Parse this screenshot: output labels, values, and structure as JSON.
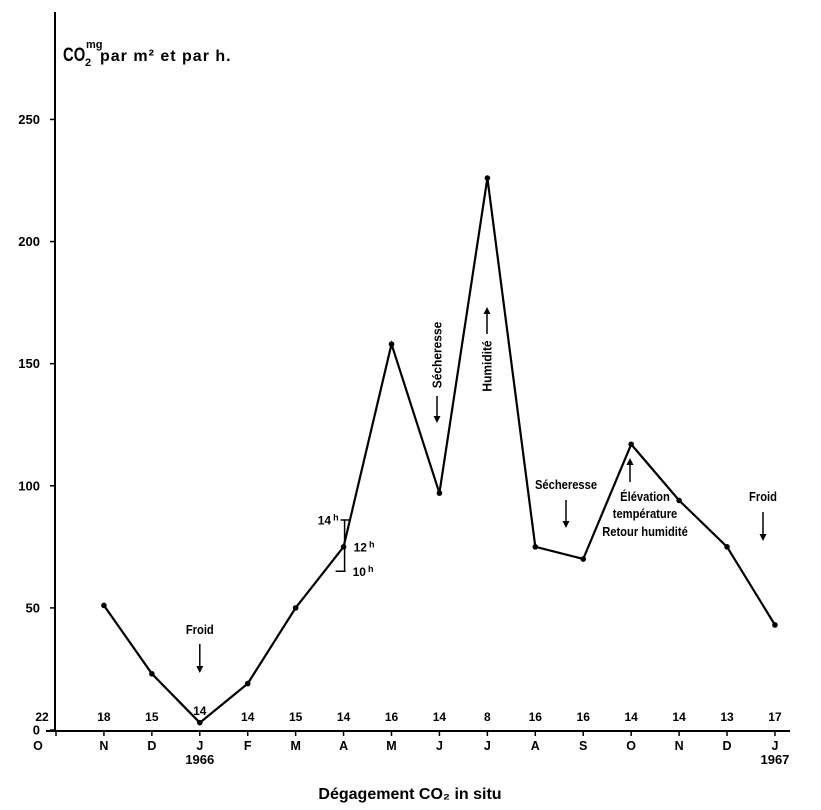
{
  "chart_data": {
    "type": "line",
    "title": "Dégagement CO₂ in situ",
    "ylabel": {
      "base": "CO",
      "subscript": "2",
      "superscript": "mg",
      "text": "par m² et par h."
    },
    "categories": [
      "O",
      "N",
      "D",
      "J",
      "F",
      "M",
      "A",
      "M",
      "J",
      "J",
      "A",
      "S",
      "O",
      "N",
      "D",
      "J"
    ],
    "year_labels": [
      {
        "category_index": 3,
        "text": "1966"
      },
      {
        "category_index": 15,
        "text": "1967"
      }
    ],
    "counts": [
      22,
      18,
      15,
      14,
      14,
      15,
      14,
      16,
      14,
      8,
      16,
      16,
      14,
      14,
      13,
      17
    ],
    "values": [
      null,
      51,
      23,
      3,
      19,
      50,
      75,
      158,
      97,
      226,
      75,
      70,
      117,
      94,
      75,
      43
    ],
    "yticks": [
      0,
      50,
      100,
      150,
      200,
      250
    ],
    "ylim": [
      0,
      294
    ],
    "grid": false,
    "line_color": "#000000",
    "hourly_variation": {
      "category_index": 6,
      "points": [
        {
          "hour": "14",
          "unit": "h",
          "value": 86
        },
        {
          "hour": "12",
          "unit": "h",
          "value": 75
        },
        {
          "hour": "10",
          "unit": "h",
          "value": 65
        }
      ]
    },
    "annotations": [
      {
        "lines": [
          "Froid"
        ],
        "icon": "arrow-down-icon"
      },
      {
        "lines": [
          "Sécheresse"
        ],
        "icon": "arrow-down-icon"
      },
      {
        "lines": [
          "Humidité"
        ],
        "icon": "arrow-up-icon"
      },
      {
        "lines": [
          "Sécheresse"
        ],
        "icon": "arrow-down-icon"
      },
      {
        "lines": [
          "Élévation",
          "température",
          "Retour humidité"
        ],
        "icon": "arrow-up-icon"
      },
      {
        "lines": [
          "Froid"
        ],
        "icon": "arrow-down-icon"
      }
    ]
  }
}
